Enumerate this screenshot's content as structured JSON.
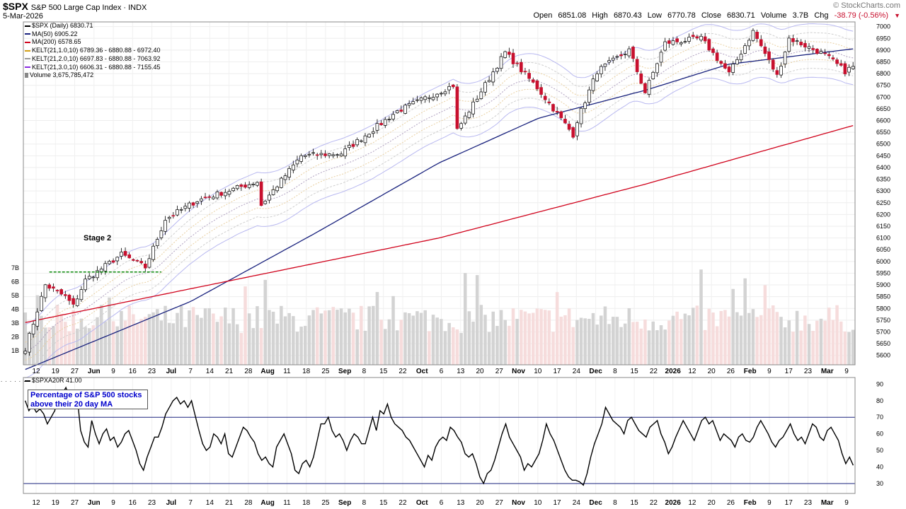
{
  "header": {
    "symbol": "$SPX",
    "name": "S&P 500 Large Cap Index",
    "exchange": "INDX",
    "date": "5-Mar-2026",
    "brand": "© StockCharts.com",
    "open_label": "Open",
    "open": "6851.08",
    "high_label": "High",
    "high": "6870.43",
    "low_label": "Low",
    "low": "6770.78",
    "close_label": "Close",
    "close": "6830.71",
    "volume_label": "Volume",
    "volume": "3.7B",
    "chg_label": "Chg",
    "chg": "-38.79 (-0.56%)"
  },
  "legend": [
    {
      "text": "$SPX (Daily) 6830.71",
      "color": "#000000"
    },
    {
      "text": "MA(50) 6905.22",
      "color": "#1a237e"
    },
    {
      "text": "MA(200) 6578.65",
      "color": "#d0021b"
    },
    {
      "text": "KELT(21,1.0,10) 6789.36 - 6880.88 - 6972.40",
      "color": "#d4a017"
    },
    {
      "text": "KELT(21,2.0,10) 6697.83 - 6880.88 - 7063.92",
      "color": "#999999"
    },
    {
      "text": "KELT(21,3.0,10) 6606.31 - 6880.88 - 7155.45",
      "color": "#8a2be2"
    },
    {
      "text": "Volume 3,675,785,472",
      "color": "#888888"
    }
  ],
  "annotations": {
    "stage": "Stage 2",
    "note": "Percentage of S&P 500 stocks above their 20 day MA"
  },
  "indicator": {
    "label": "$SPXA20R 41.00",
    "dots": ". . . . . . . ."
  },
  "colors": {
    "up_candle": "#ffffff",
    "down_candle": "#c8102e",
    "ma50": "#1a237e",
    "ma200": "#d0021b",
    "kelt3": "#b8b8f0",
    "kelt2": "#999999",
    "kelt1": "#d4a017",
    "volume_up": "#d3d3d3",
    "volume_down": "#f6dcdc",
    "base_line": "#0a8a0a",
    "hline": "#1a237e"
  },
  "chart_data": [
    {
      "type": "candlestick",
      "title": "$SPX S&P 500 Large Cap Index INDX",
      "price_axis_ticks": [
        5600,
        5650,
        5700,
        5750,
        5800,
        5850,
        5900,
        5950,
        6000,
        6050,
        6100,
        6150,
        6200,
        6250,
        6300,
        6350,
        6400,
        6450,
        6500,
        6550,
        6600,
        6650,
        6700,
        6750,
        6800,
        6850,
        6900,
        6950,
        7000
      ],
      "volume_axis_ticks": [
        "1B",
        "2B",
        "3B",
        "4B",
        "5B",
        "6B",
        "7B"
      ],
      "x_tick_labels": [
        "12",
        "19",
        "27",
        "Jun",
        "9",
        "16",
        "23",
        "Jul",
        "7",
        "14",
        "21",
        "28",
        "Aug",
        "11",
        "18",
        "25",
        "Sep",
        "8",
        "15",
        "22",
        "Oct",
        "6",
        "13",
        "20",
        "27",
        "Nov",
        "10",
        "17",
        "24",
        "Dec",
        "8",
        "15",
        "22",
        "2026",
        "12",
        "20",
        "26",
        "Feb",
        "9",
        "17",
        "23",
        "Mar",
        "9"
      ],
      "x_tick_bold": [
        "Jun",
        "Jul",
        "Aug",
        "Sep",
        "Oct",
        "Nov",
        "Dec",
        "2026",
        "Feb",
        "Mar"
      ],
      "close_keyframes": [
        {
          "date": "2025-05-07",
          "close": 5630
        },
        {
          "date": "2025-05-14",
          "close": 5900
        },
        {
          "date": "2025-05-21",
          "close": 5850
        },
        {
          "date": "2025-05-23",
          "close": 5810
        },
        {
          "date": "2025-05-29",
          "close": 5920
        },
        {
          "date": "2025-06-11",
          "close": 6030
        },
        {
          "date": "2025-06-20",
          "close": 5975
        },
        {
          "date": "2025-06-27",
          "close": 6180
        },
        {
          "date": "2025-07-10",
          "close": 6260
        },
        {
          "date": "2025-07-31",
          "close": 6340
        },
        {
          "date": "2025-08-01",
          "close": 6240
        },
        {
          "date": "2025-08-15",
          "close": 6450
        },
        {
          "date": "2025-08-29",
          "close": 6460
        },
        {
          "date": "2025-09-19",
          "close": 6640
        },
        {
          "date": "2025-10-09",
          "close": 6750
        },
        {
          "date": "2025-10-10",
          "close": 6560
        },
        {
          "date": "2025-10-28",
          "close": 6890
        },
        {
          "date": "2025-11-07",
          "close": 6740
        },
        {
          "date": "2025-11-20",
          "close": 6540
        },
        {
          "date": "2025-11-21",
          "close": 6600
        },
        {
          "date": "2025-12-01",
          "close": 6810
        },
        {
          "date": "2025-12-11",
          "close": 6900
        },
        {
          "date": "2025-12-17",
          "close": 6720
        },
        {
          "date": "2025-12-24",
          "close": 6930
        },
        {
          "date": "2026-01-08",
          "close": 6950
        },
        {
          "date": "2026-01-20",
          "close": 6800
        },
        {
          "date": "2026-01-28",
          "close": 6980
        },
        {
          "date": "2026-02-05",
          "close": 6790
        },
        {
          "date": "2026-02-10",
          "close": 6950
        },
        {
          "date": "2026-02-24",
          "close": 6880
        },
        {
          "date": "2026-03-03",
          "close": 6810
        },
        {
          "date": "2026-03-05",
          "close": 6830.71
        }
      ],
      "series": [
        {
          "name": "MA(50)",
          "keyframes": [
            [
              0,
              5540
            ],
            [
              0.2,
              5830
            ],
            [
              0.35,
              6120
            ],
            [
              0.5,
              6420
            ],
            [
              0.62,
              6610
            ],
            [
              0.75,
              6730
            ],
            [
              0.85,
              6840
            ],
            [
              1,
              6905.22
            ]
          ]
        },
        {
          "name": "MA(200)",
          "keyframes": [
            [
              0,
              5740
            ],
            [
              0.25,
              5920
            ],
            [
              0.5,
              6100
            ],
            [
              0.75,
              6330
            ],
            [
              1,
              6578.65
            ]
          ]
        }
      ],
      "stage2_base_level": 5955
    },
    {
      "type": "line",
      "title": "$SPXA20R 41.00",
      "y_ticks": [
        30,
        40,
        50,
        60,
        70,
        80,
        90
      ],
      "hlines": [
        70,
        30
      ],
      "values": [
        80,
        74,
        77,
        73,
        75,
        72,
        66,
        70,
        74,
        86,
        84,
        88,
        82,
        80,
        84,
        62,
        55,
        52,
        68,
        60,
        54,
        60,
        63,
        56,
        58,
        52,
        55,
        60,
        62,
        56,
        50,
        42,
        38,
        46,
        52,
        58,
        58,
        64,
        72,
        76,
        80,
        82,
        78,
        80,
        76,
        80,
        71,
        62,
        54,
        50,
        52,
        60,
        58,
        54,
        60,
        48,
        46,
        52,
        58,
        64,
        62,
        58,
        55,
        48,
        44,
        46,
        42,
        40,
        52,
        56,
        60,
        54,
        48,
        38,
        36,
        42,
        44,
        40,
        46,
        56,
        66,
        66,
        70,
        62,
        58,
        60,
        56,
        50,
        56,
        60,
        58,
        54,
        54,
        62,
        70,
        62,
        74,
        72,
        78,
        70,
        66,
        64,
        62,
        58,
        56,
        52,
        48,
        44,
        40,
        47,
        44,
        52,
        56,
        58,
        56,
        64,
        62,
        58,
        55,
        48,
        46,
        48,
        42,
        34,
        30,
        36,
        38,
        44,
        52,
        60,
        66,
        58,
        54,
        50,
        46,
        38,
        42,
        40,
        44,
        48,
        56,
        66,
        60,
        56,
        50,
        44,
        38,
        34,
        32,
        32,
        31,
        29,
        36,
        46,
        54,
        60,
        66,
        76,
        72,
        68,
        66,
        64,
        60,
        68,
        70,
        66,
        62,
        60,
        58,
        64,
        66,
        68,
        60,
        55,
        48,
        52,
        58,
        63,
        68,
        64,
        60,
        56,
        62,
        68,
        70,
        66,
        68,
        62,
        56,
        60,
        58,
        56,
        52,
        58,
        60,
        56,
        55,
        58,
        64,
        68,
        64,
        60,
        55,
        52,
        56,
        58,
        62,
        66,
        60,
        56,
        58,
        54,
        60,
        66,
        64,
        58,
        56,
        62,
        64,
        60,
        56,
        48,
        42,
        46,
        41
      ]
    }
  ]
}
